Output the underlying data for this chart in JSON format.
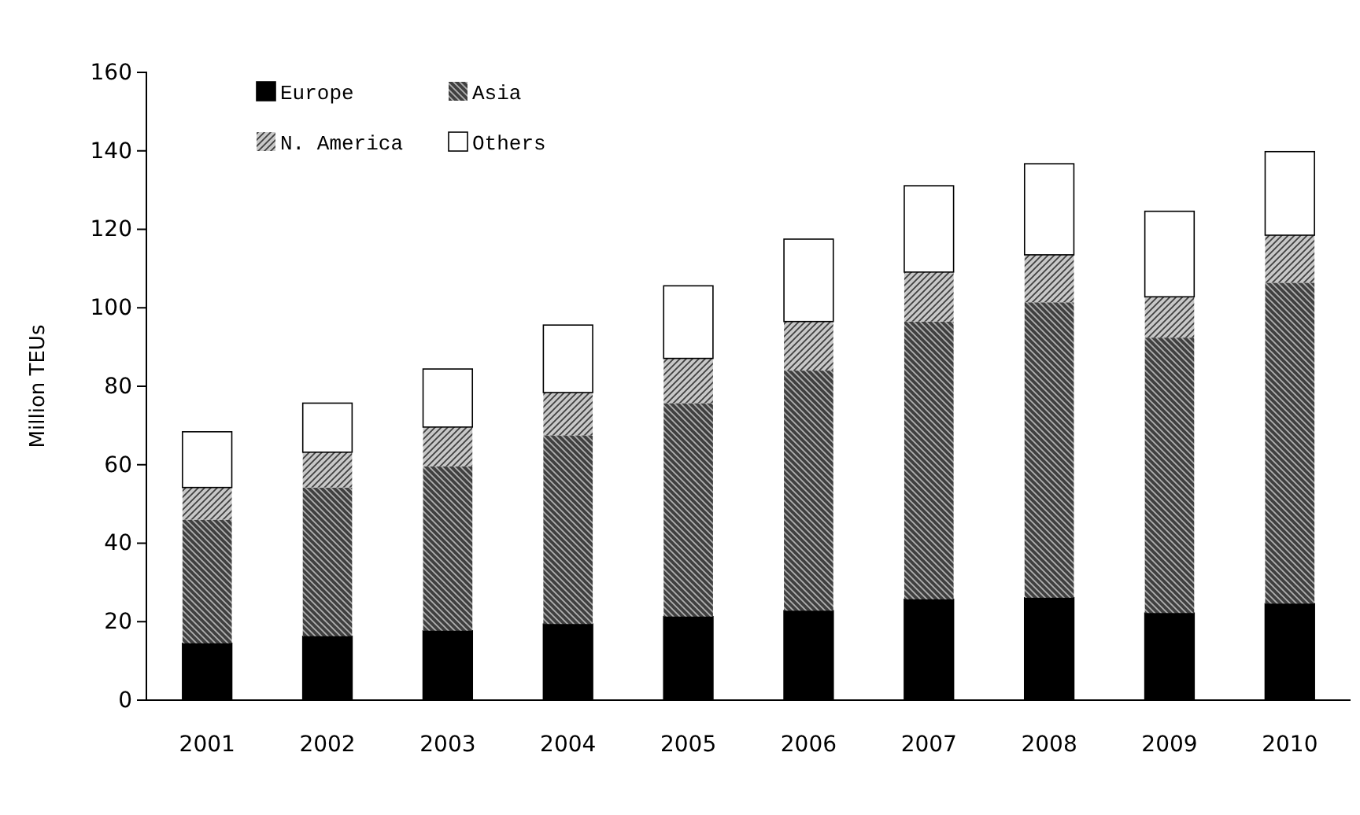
{
  "chart_data": {
    "type": "bar",
    "stacked": true,
    "ylabel": "Million TEUs",
    "categories": [
      "2001",
      "2002",
      "2003",
      "2004",
      "2005",
      "2006",
      "2007",
      "2008",
      "2009",
      "2010"
    ],
    "series": [
      {
        "name": "Europe",
        "color": "#000000",
        "values": [
          14.5,
          16.3,
          17.7,
          19.4,
          21.3,
          22.8,
          25.7,
          26.1,
          22.2,
          24.6
        ]
      },
      {
        "name": "Asia",
        "color": "#404040",
        "values": [
          31.5,
          37.9,
          41.9,
          48.1,
          54.4,
          61.2,
          70.8,
          75.3,
          70.2,
          81.8
        ]
      },
      {
        "name": "N. America",
        "color": "#c8c8c8",
        "values": [
          8.2,
          9.0,
          10.0,
          10.9,
          11.4,
          12.5,
          12.6,
          12.1,
          10.4,
          12.1
        ]
      },
      {
        "name": "Others",
        "color": "#ffffff",
        "values": [
          14.2,
          12.5,
          14.8,
          17.2,
          18.5,
          21.0,
          22.0,
          23.2,
          21.8,
          21.3
        ]
      }
    ],
    "ylim": [
      0,
      160
    ],
    "yticks": [
      0,
      20,
      40,
      60,
      80,
      100,
      120,
      140,
      160
    ],
    "grid": false,
    "legend": "top left"
  }
}
